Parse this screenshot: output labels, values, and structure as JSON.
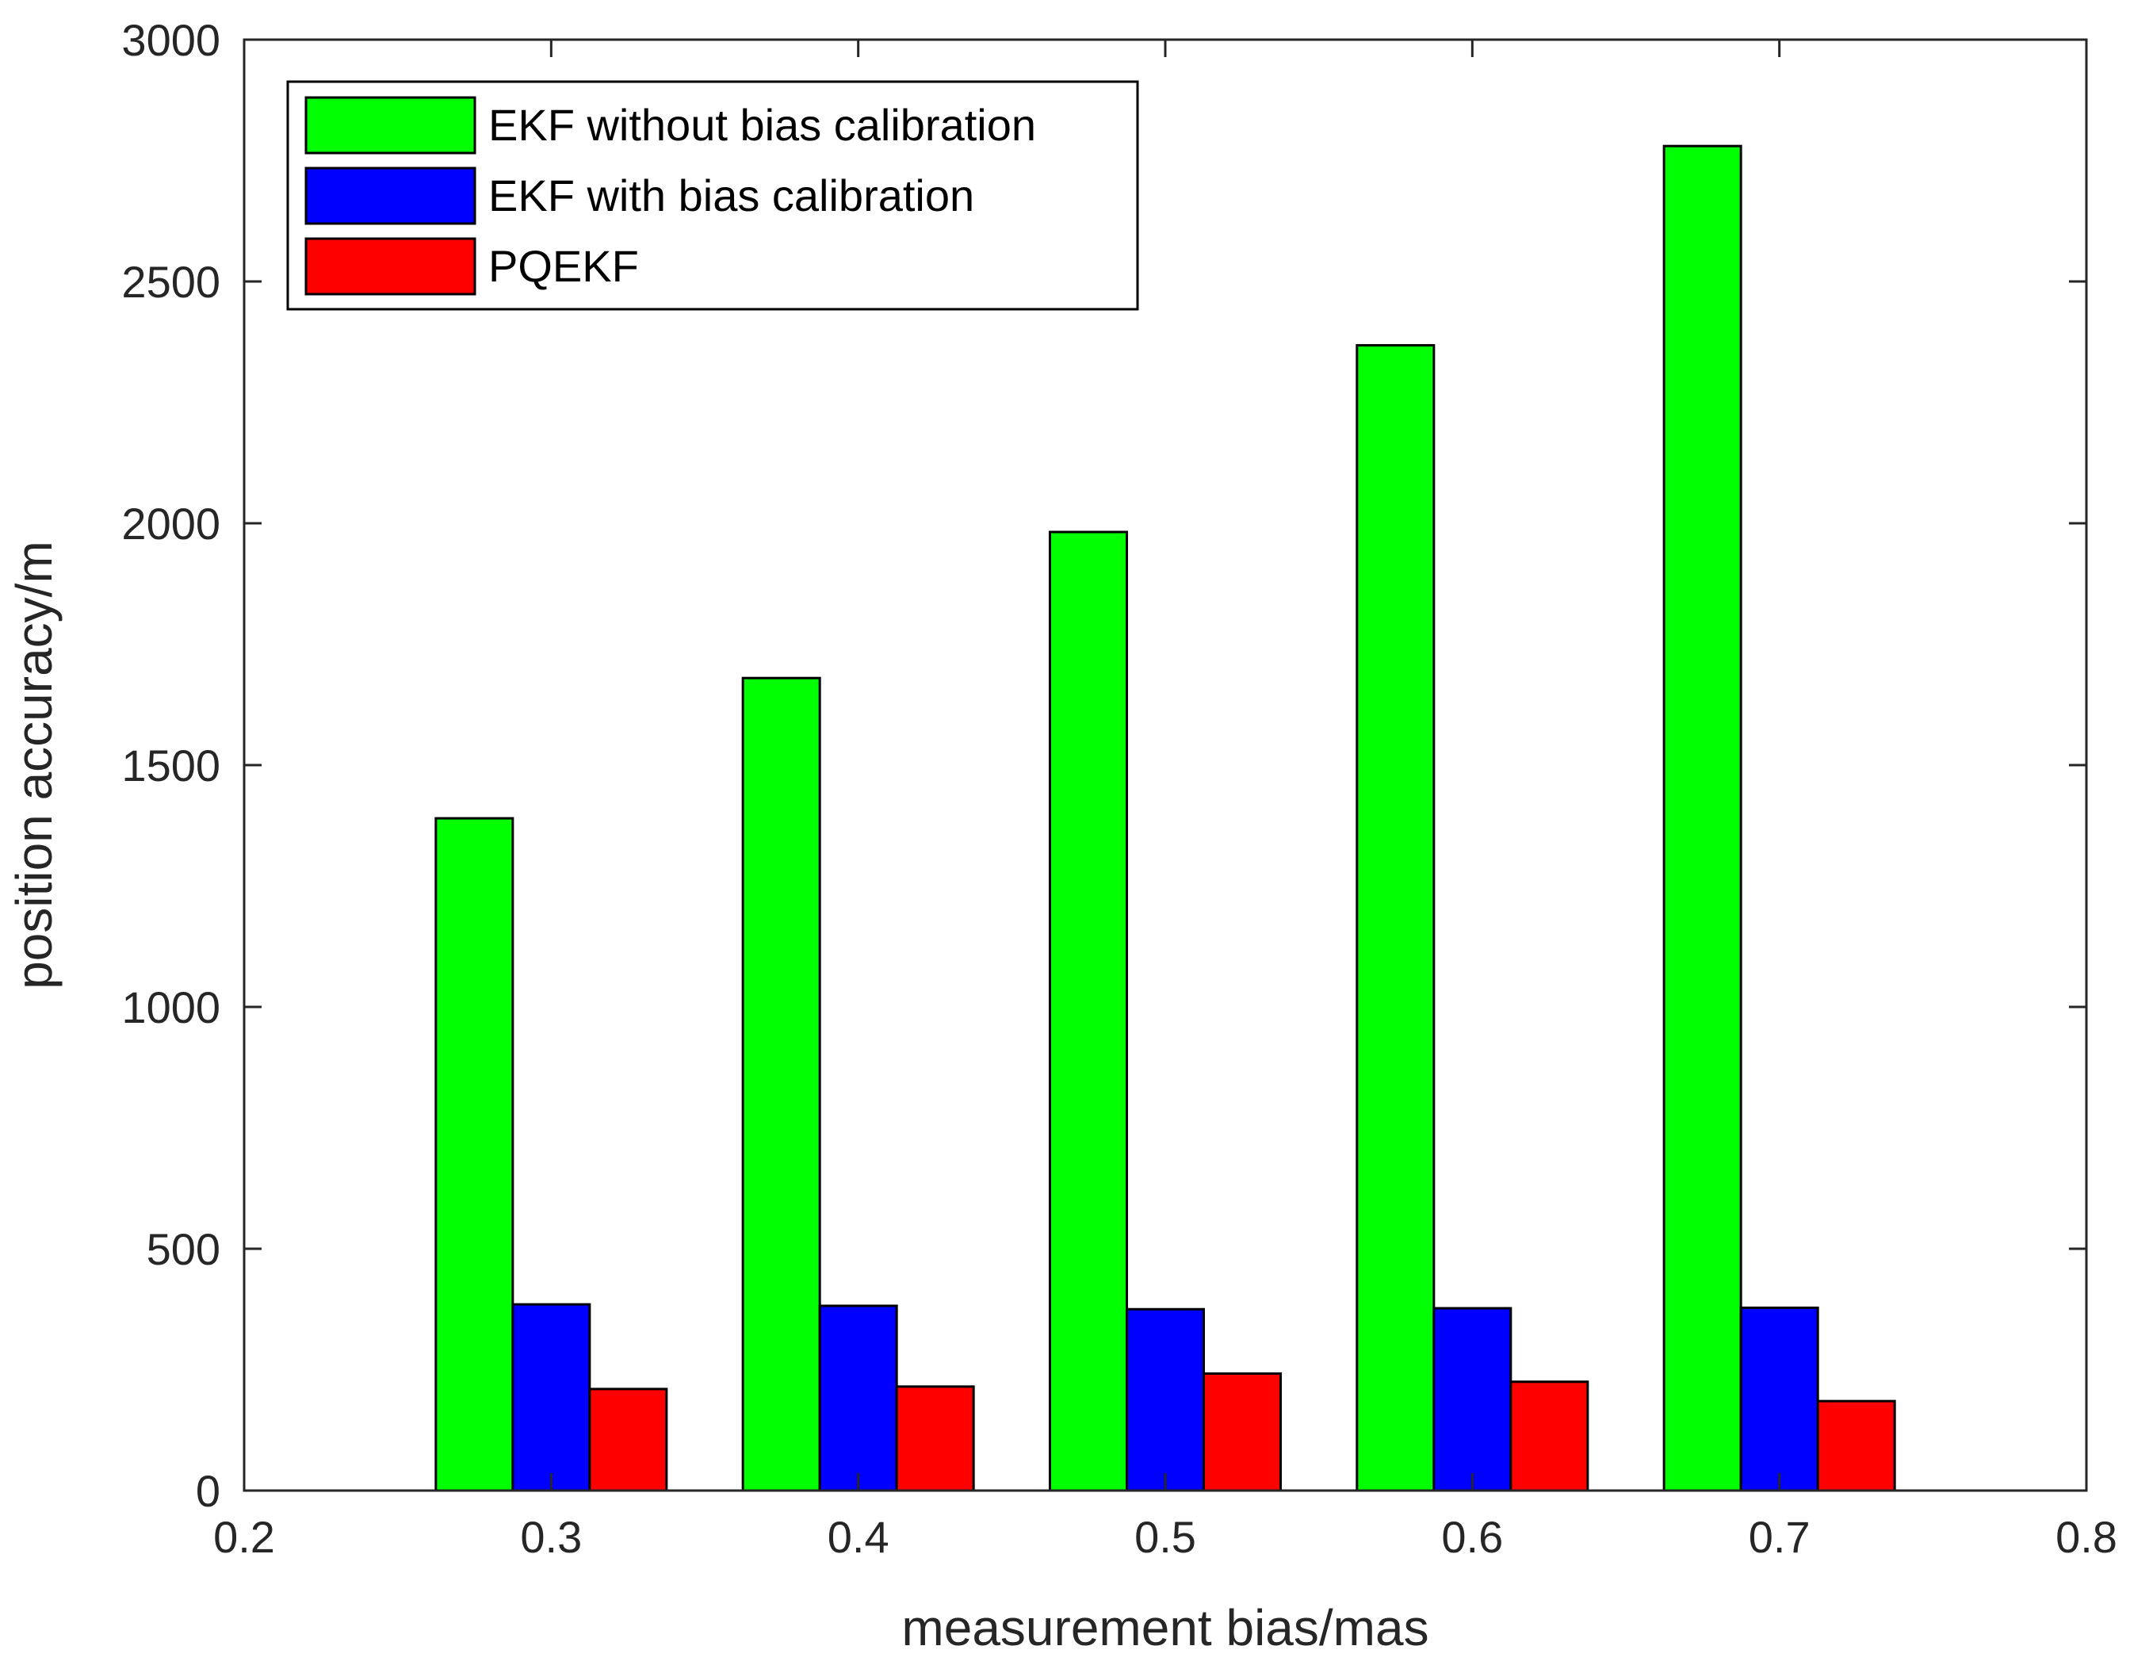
{
  "chart_data": {
    "type": "bar",
    "title": "",
    "xlabel": "measurement bias/mas",
    "ylabel": "position accuracy/m",
    "x": [
      0.3,
      0.4,
      0.5,
      0.6,
      0.7
    ],
    "xlim": [
      0.2,
      0.8
    ],
    "ylim": [
      0,
      3000
    ],
    "xticks": [
      "0.2",
      "0.3",
      "0.4",
      "0.5",
      "0.6",
      "0.7",
      "0.8"
    ],
    "xtick_values": [
      0.2,
      0.3,
      0.4,
      0.5,
      0.6,
      0.7,
      0.8
    ],
    "yticks": [
      "0",
      "500",
      "1000",
      "1500",
      "2000",
      "2500",
      "3000"
    ],
    "ytick_values": [
      0,
      500,
      1000,
      1500,
      2000,
      2500,
      3000
    ],
    "grid": false,
    "legend_position": "top-left",
    "series": [
      {
        "name": "EKF without bias calibration",
        "color": "#00ff00",
        "values": [
          1390,
          1680,
          1982,
          2368,
          2780
        ]
      },
      {
        "name": "EKF with bias calibration",
        "color": "#0000ff",
        "values": [
          385,
          382,
          375,
          377,
          378
        ]
      },
      {
        "name": "PQEKF",
        "color": "#ff0000",
        "values": [
          210,
          215,
          242,
          225,
          185
        ]
      }
    ]
  }
}
